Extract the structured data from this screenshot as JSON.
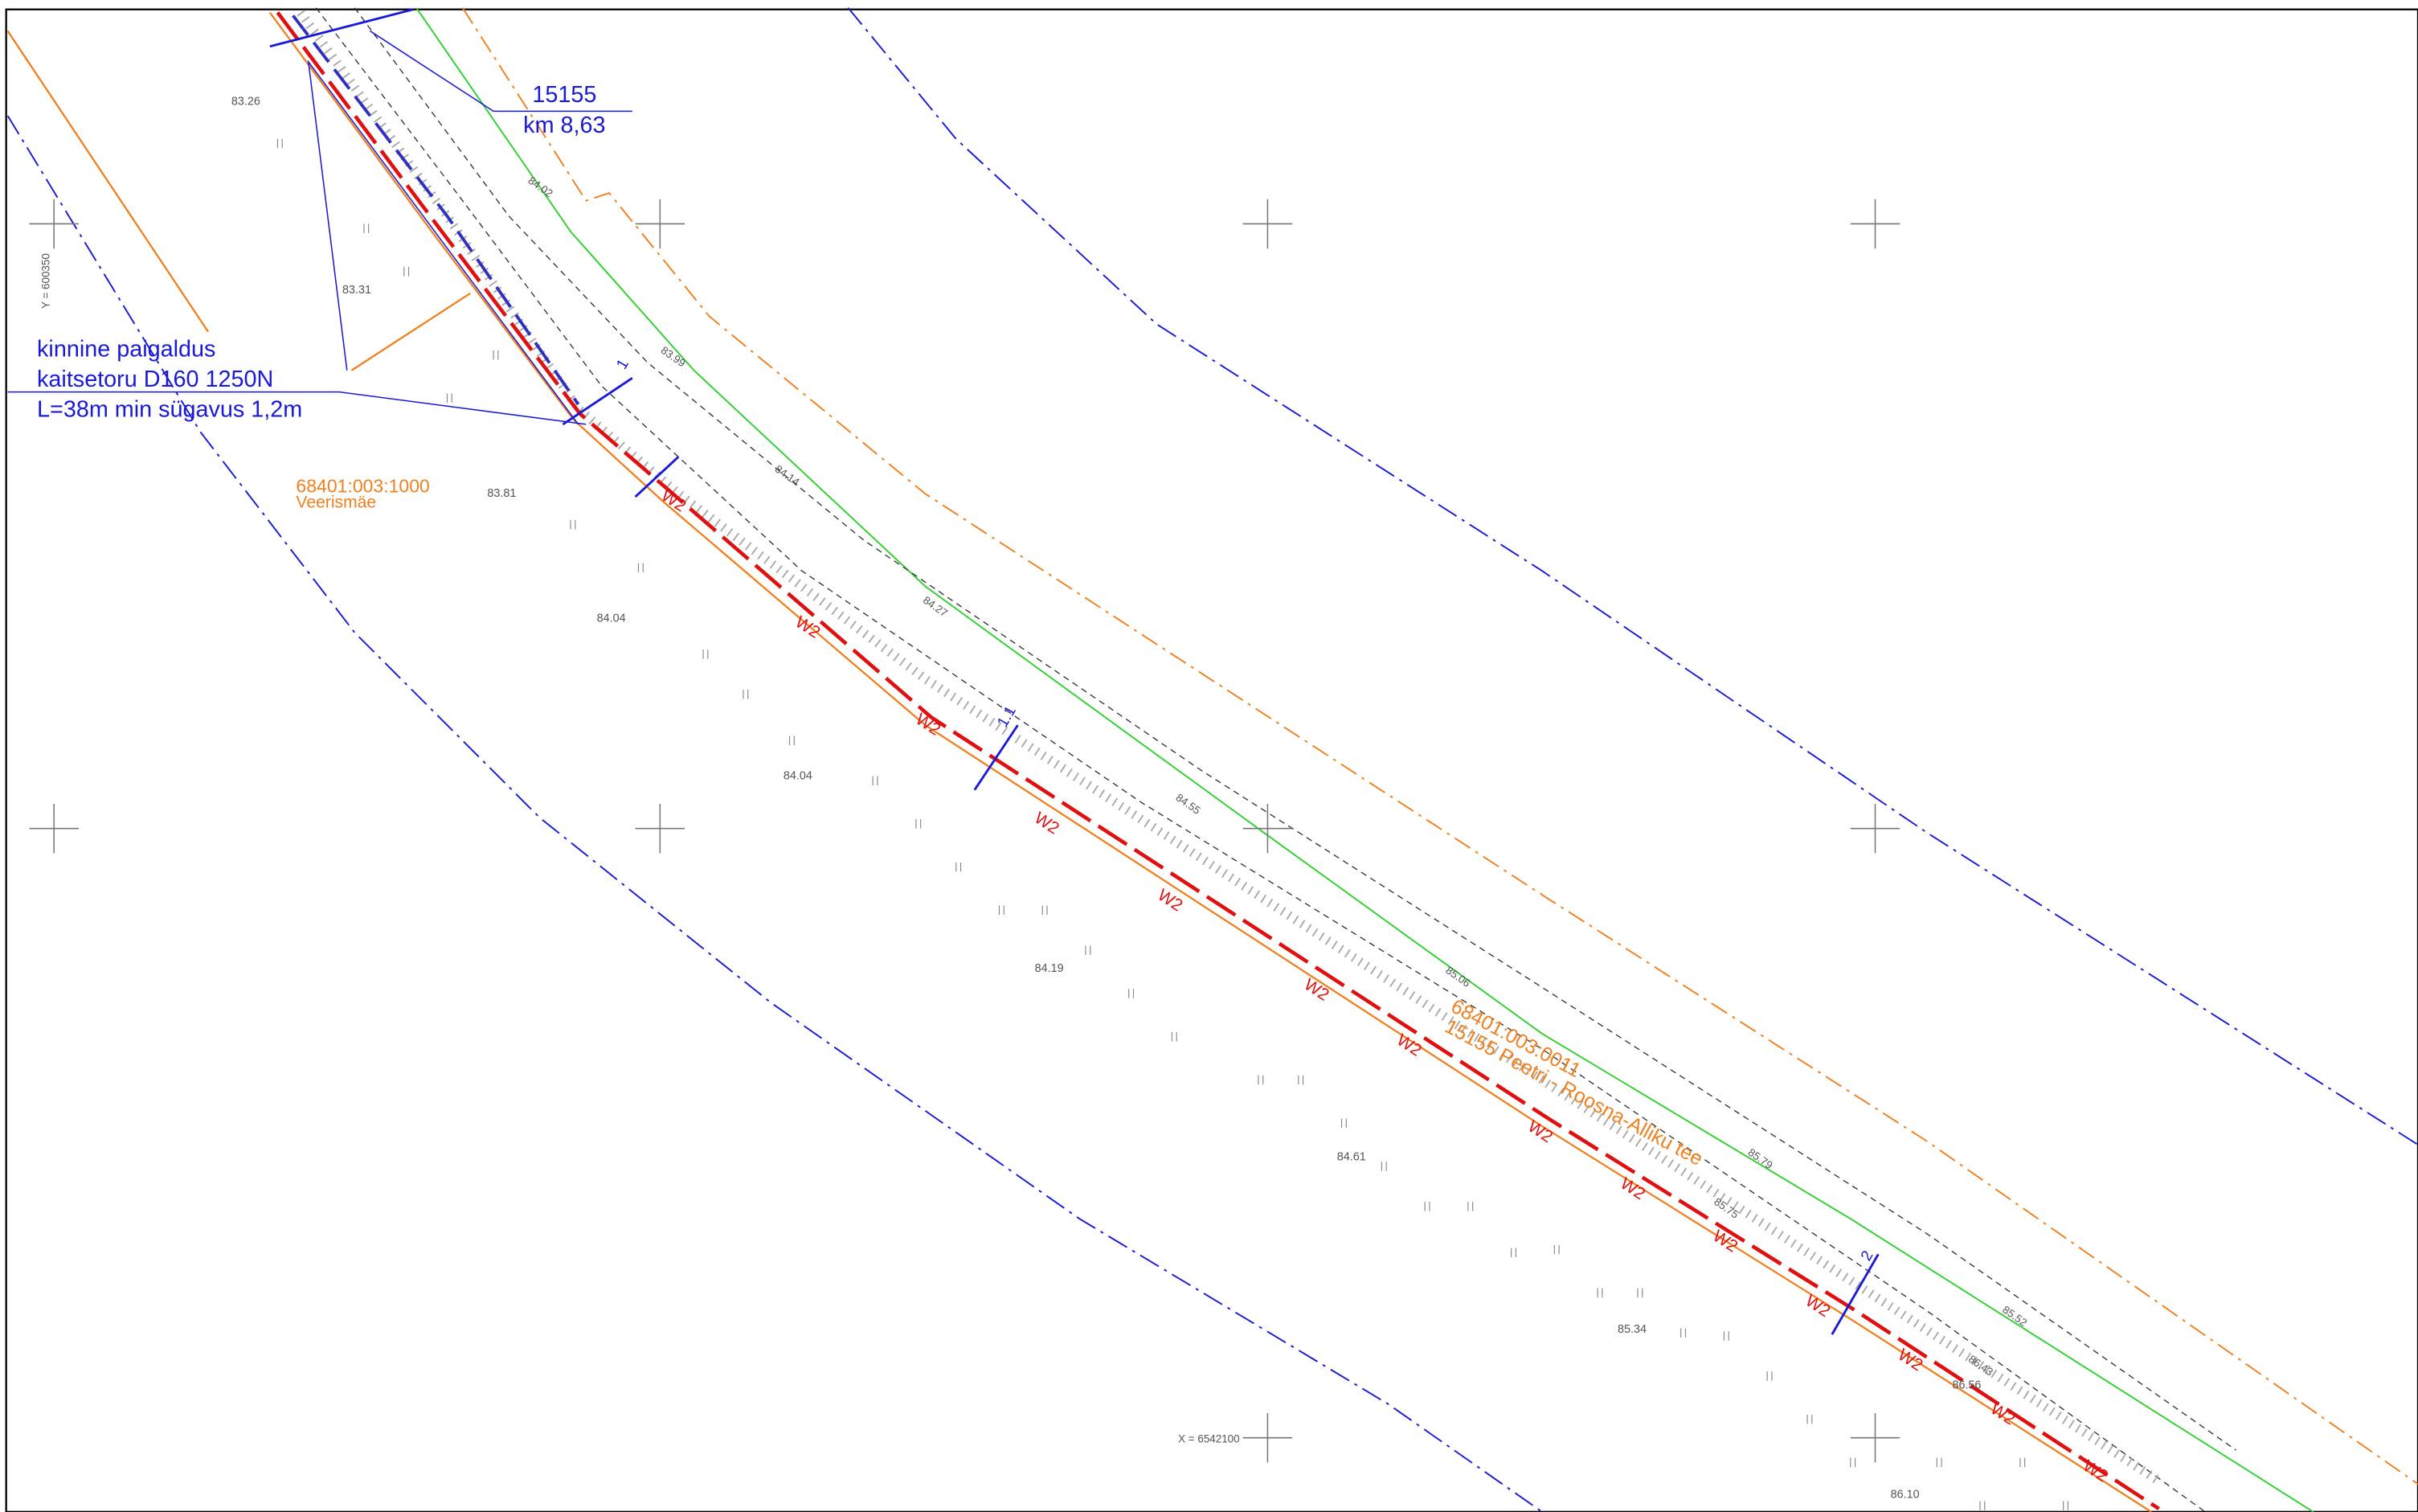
{
  "callout_station": {
    "number": "15155",
    "km": "km 8,63"
  },
  "callout_crossing": {
    "lines": [
      "kinnine paigaldus",
      "kaitsetoru D160 1250N",
      "L=38m min sügavus 1,2m"
    ]
  },
  "parcels": [
    {
      "id": "68401:003:1000",
      "name": "Veerismäe"
    },
    {
      "id": "68401:003:0011",
      "name": "15155 Peetri - Roosna-Alliku tee"
    }
  ],
  "pipe_label": "W2",
  "sections": [
    "1",
    "1.1",
    "2"
  ],
  "coordinates": [
    "Y = 600350",
    "X = 6542100"
  ],
  "ground_elevations": [
    "83.26",
    "83.31",
    "83.81",
    "84.04",
    "84.04",
    "84.19",
    "84.61",
    "85.34",
    "86.10",
    "86.56"
  ],
  "road_elevations": [
    "84.02",
    "83.99",
    "84.14",
    "84.27",
    "84.55",
    "85.06",
    "85.79",
    "85.75",
    "85.52",
    "86.43"
  ]
}
